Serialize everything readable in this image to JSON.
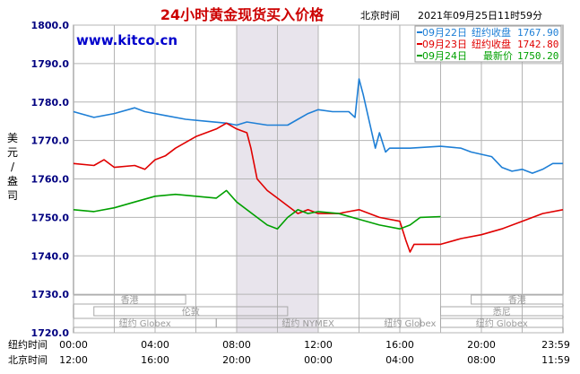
{
  "title": "24小时黄金现货买入价格",
  "header_time": {
    "label": "北京时间",
    "value": "2021年09月25日11时59分"
  },
  "watermark": "www.kitco.cn",
  "y_axis_label": "美元/盎司",
  "colors": {
    "title": "#cc0000",
    "watermark": "#0000cc",
    "grid": "#b4b4b4",
    "band": "#e8e4ec",
    "market_text": "#9a9a9a",
    "axis_text": "#000080"
  },
  "legend": [
    {
      "date": "09月22日",
      "label": "纽约收盘",
      "value": "1767.90",
      "color": "#1e7fd6"
    },
    {
      "date": "09月23日",
      "label": "纽约收盘",
      "value": "1742.80",
      "color": "#e00000"
    },
    {
      "date": "09月24日",
      "label": "最新价",
      "value": "1750.20",
      "color": "#00a000"
    }
  ],
  "time_rows": [
    {
      "label": "纽约时间",
      "ticks": [
        "00:00",
        "04:00",
        "08:00",
        "12:00",
        "16:00",
        "20:00",
        "23:59"
      ]
    },
    {
      "label": "北京时间",
      "ticks": [
        "12:00",
        "16:00",
        "20:00",
        "00:00",
        "04:00",
        "08:00",
        "11:59"
      ]
    }
  ],
  "markets": [
    {
      "name": "香港",
      "row": 1,
      "start": 0.0,
      "end": 5.5
    },
    {
      "name": "伦敦",
      "row": 2,
      "start": 1.0,
      "end": 10.5
    },
    {
      "name": "纽约 NYMEX",
      "row": 3,
      "start": 7.0,
      "end": 16.0
    },
    {
      "name": "纽约 Globex",
      "row": 3,
      "start": 0.0,
      "end": 7.0
    },
    {
      "name": "纽约 Globex",
      "row": 3,
      "start": 16.0,
      "end": 17.0
    },
    {
      "name": "纽约 Globex",
      "row": 3,
      "start": 18.0,
      "end": 24.0
    },
    {
      "name": "香港",
      "row": 1,
      "start": 19.5,
      "end": 24.0
    },
    {
      "name": "悉尼",
      "row": 2,
      "start": 18.0,
      "end": 24.0
    }
  ],
  "chart_data": {
    "type": "line",
    "title": "24小时黄金现货买入价格",
    "ylabel": "美元/盎司",
    "ylim": [
      1720,
      1800
    ],
    "xlim": [
      0,
      24
    ],
    "y_ticks": [
      "1720.0",
      "1730.0",
      "1740.0",
      "1750.0",
      "1760.0",
      "1770.0",
      "1780.0",
      "1790.0",
      "1800.0"
    ],
    "shaded_range": [
      8,
      12
    ],
    "series": [
      {
        "name": "09月22日",
        "color": "#1e7fd6",
        "points": [
          [
            0,
            1777.5
          ],
          [
            1,
            1776
          ],
          [
            2,
            1777
          ],
          [
            3,
            1778.5
          ],
          [
            3.5,
            1777.5
          ],
          [
            4.5,
            1776.5
          ],
          [
            5.5,
            1775.5
          ],
          [
            6.5,
            1775
          ],
          [
            7.5,
            1774.5
          ],
          [
            8,
            1774
          ],
          [
            8.5,
            1774.8
          ],
          [
            9.5,
            1774
          ],
          [
            10.5,
            1774
          ],
          [
            11,
            1775.5
          ],
          [
            11.5,
            1777
          ],
          [
            12,
            1778
          ],
          [
            12.7,
            1777.5
          ],
          [
            13.5,
            1777.5
          ],
          [
            13.8,
            1776
          ],
          [
            14,
            1786
          ],
          [
            14.2,
            1782
          ],
          [
            14.5,
            1775
          ],
          [
            14.8,
            1768
          ],
          [
            15,
            1772
          ],
          [
            15.3,
            1767
          ],
          [
            15.5,
            1768
          ],
          [
            16.5,
            1768
          ],
          [
            18,
            1768.5
          ],
          [
            19,
            1768
          ],
          [
            19.5,
            1767
          ],
          [
            20.5,
            1765.8
          ],
          [
            21,
            1763
          ],
          [
            21.5,
            1762
          ],
          [
            22,
            1762.5
          ],
          [
            22.5,
            1761.5
          ],
          [
            23,
            1762.5
          ],
          [
            23.5,
            1764
          ],
          [
            24,
            1764
          ]
        ]
      },
      {
        "name": "09月23日",
        "color": "#e00000",
        "points": [
          [
            0,
            1764
          ],
          [
            1,
            1763.5
          ],
          [
            1.5,
            1765
          ],
          [
            2,
            1763
          ],
          [
            3,
            1763.5
          ],
          [
            3.5,
            1762.5
          ],
          [
            4,
            1765
          ],
          [
            4.5,
            1766
          ],
          [
            5,
            1768
          ],
          [
            6,
            1771
          ],
          [
            7,
            1773
          ],
          [
            7.5,
            1774.5
          ],
          [
            8,
            1773
          ],
          [
            8.5,
            1772
          ],
          [
            8.7,
            1768
          ],
          [
            9,
            1760
          ],
          [
            9.5,
            1757
          ],
          [
            10,
            1755
          ],
          [
            10.5,
            1753
          ],
          [
            11,
            1751
          ],
          [
            11.5,
            1752
          ],
          [
            12,
            1751
          ],
          [
            13,
            1751
          ],
          [
            13.5,
            1751.5
          ],
          [
            14,
            1752
          ],
          [
            15,
            1750
          ],
          [
            16,
            1749
          ],
          [
            16.3,
            1744
          ],
          [
            16.5,
            1741
          ],
          [
            16.7,
            1743
          ],
          [
            18,
            1743
          ],
          [
            19,
            1744.5
          ],
          [
            20,
            1745.5
          ],
          [
            21,
            1747
          ],
          [
            22,
            1749
          ],
          [
            23,
            1751
          ],
          [
            24,
            1752
          ]
        ]
      },
      {
        "name": "09月24日",
        "color": "#00a000",
        "points": [
          [
            0,
            1752
          ],
          [
            1,
            1751.5
          ],
          [
            2,
            1752.5
          ],
          [
            3,
            1754
          ],
          [
            4,
            1755.5
          ],
          [
            5,
            1756
          ],
          [
            6,
            1755.5
          ],
          [
            7,
            1755
          ],
          [
            7.5,
            1757
          ],
          [
            8,
            1754
          ],
          [
            9,
            1750
          ],
          [
            9.5,
            1748
          ],
          [
            10,
            1747
          ],
          [
            10.5,
            1750
          ],
          [
            11,
            1752
          ],
          [
            11.5,
            1751
          ],
          [
            12,
            1751.5
          ],
          [
            13,
            1751
          ],
          [
            14,
            1749.5
          ],
          [
            15,
            1748
          ],
          [
            16,
            1747
          ],
          [
            16.5,
            1748
          ],
          [
            17,
            1750
          ],
          [
            18,
            1750.2
          ]
        ]
      }
    ]
  }
}
